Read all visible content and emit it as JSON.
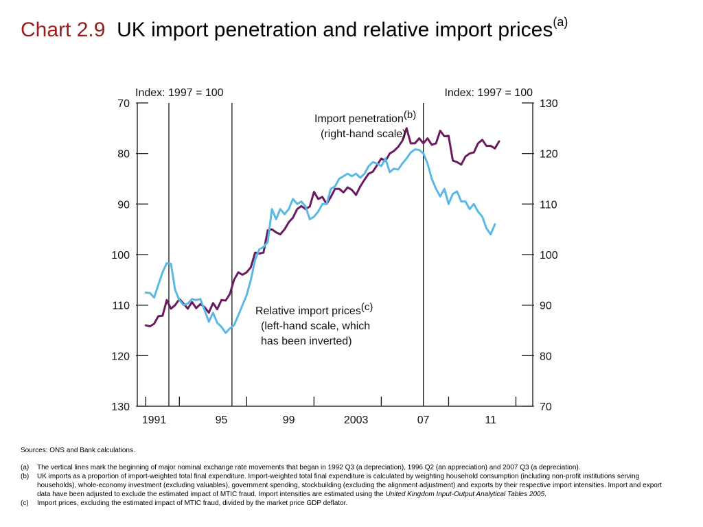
{
  "header": {
    "chart_number": "Chart 2.9",
    "title": "UK import penetration and relative import prices",
    "title_footnote": "(a)"
  },
  "chart_data": {
    "type": "line",
    "left_axis": {
      "label": "Index: 1997 = 100",
      "ylim": [
        70,
        130
      ],
      "inverted": true,
      "ticks": [
        "70",
        "80",
        "90",
        "100",
        "110",
        "120",
        "130"
      ]
    },
    "right_axis": {
      "label": "Index: 1997 = 100",
      "ylim": [
        70,
        130
      ],
      "inverted": false,
      "ticks": [
        "130",
        "120",
        "110",
        "100",
        "90",
        "80",
        "70"
      ]
    },
    "x_axis": {
      "xlim": [
        1989.5,
        2013.0
      ],
      "ticks": [
        1990,
        1992,
        1996,
        2000,
        2004,
        2008,
        2012
      ],
      "tick_labels": [
        {
          "x": 1990.5,
          "label": "1991"
        },
        {
          "x": 1994.5,
          "label": "95"
        },
        {
          "x": 1998.5,
          "label": "99"
        },
        {
          "x": 2002.5,
          "label": "2003"
        },
        {
          "x": 2006.5,
          "label": "07"
        },
        {
          "x": 2010.5,
          "label": "11"
        }
      ]
    },
    "vertical_lines": [
      1991.375,
      1995.125,
      2006.5
    ],
    "grid": false,
    "series": [
      {
        "key": "import_penetration",
        "axis": "right",
        "color": "#6a1a5e",
        "label_lines": [
          "Import penetration",
          "(right-hand scale)"
        ],
        "label_footnote": "(b)",
        "points": [
          [
            1990.0,
            86.0
          ],
          [
            1990.25,
            85.8
          ],
          [
            1990.5,
            86.3
          ],
          [
            1990.75,
            87.8
          ],
          [
            1991.0,
            87.9
          ],
          [
            1991.25,
            91.0
          ],
          [
            1991.5,
            89.3
          ],
          [
            1991.75,
            90.0
          ],
          [
            1992.0,
            91.2
          ],
          [
            1992.25,
            90.3
          ],
          [
            1992.5,
            89.3
          ],
          [
            1992.75,
            90.6
          ],
          [
            1993.0,
            89.4
          ],
          [
            1993.25,
            90.2
          ],
          [
            1993.5,
            89.6
          ],
          [
            1993.75,
            88.5
          ],
          [
            1994.0,
            90.4
          ],
          [
            1994.25,
            89.2
          ],
          [
            1994.5,
            91.0
          ],
          [
            1994.75,
            90.9
          ],
          [
            1995.0,
            92.2
          ],
          [
            1995.25,
            95.0
          ],
          [
            1995.5,
            96.5
          ],
          [
            1995.75,
            96.0
          ],
          [
            1996.0,
            96.5
          ],
          [
            1996.25,
            97.5
          ],
          [
            1996.5,
            100.4
          ],
          [
            1996.75,
            100.2
          ],
          [
            1997.0,
            100.4
          ],
          [
            1997.25,
            104.8
          ],
          [
            1997.5,
            105.0
          ],
          [
            1997.75,
            104.4
          ],
          [
            1998.0,
            104.0
          ],
          [
            1998.25,
            105.0
          ],
          [
            1998.5,
            106.4
          ],
          [
            1998.75,
            107.3
          ],
          [
            1999.0,
            109.0
          ],
          [
            1999.25,
            109.6
          ],
          [
            1999.5,
            109.0
          ],
          [
            1999.75,
            109.5
          ],
          [
            2000.0,
            112.4
          ],
          [
            2000.25,
            111.0
          ],
          [
            2000.5,
            111.4
          ],
          [
            2000.75,
            110.0
          ],
          [
            2001.0,
            111.4
          ],
          [
            2001.25,
            113.0
          ],
          [
            2001.5,
            113.0
          ],
          [
            2001.75,
            112.3
          ],
          [
            2002.0,
            113.3
          ],
          [
            2002.25,
            112.8
          ],
          [
            2002.5,
            111.8
          ],
          [
            2002.75,
            113.5
          ],
          [
            2003.0,
            114.8
          ],
          [
            2003.25,
            116.0
          ],
          [
            2003.5,
            116.4
          ],
          [
            2003.75,
            117.7
          ],
          [
            2004.0,
            119.0
          ],
          [
            2004.25,
            118.5
          ],
          [
            2004.5,
            120.0
          ],
          [
            2004.75,
            120.5
          ],
          [
            2005.0,
            121.3
          ],
          [
            2005.25,
            122.5
          ],
          [
            2005.5,
            125.0
          ],
          [
            2005.75,
            122.0
          ],
          [
            2006.0,
            122.0
          ],
          [
            2006.25,
            123.0
          ],
          [
            2006.5,
            122.0
          ],
          [
            2006.75,
            123.0
          ],
          [
            2007.0,
            121.7
          ],
          [
            2007.25,
            122.0
          ],
          [
            2007.5,
            124.5
          ],
          [
            2007.75,
            123.4
          ],
          [
            2008.0,
            123.5
          ],
          [
            2008.25,
            118.6
          ],
          [
            2008.5,
            118.3
          ],
          [
            2008.75,
            117.8
          ],
          [
            2009.0,
            119.4
          ],
          [
            2009.25,
            120.0
          ],
          [
            2009.5,
            120.2
          ],
          [
            2009.75,
            122.0
          ],
          [
            2010.0,
            122.7
          ],
          [
            2010.25,
            121.5
          ],
          [
            2010.5,
            121.5
          ],
          [
            2010.75,
            121.0
          ],
          [
            2011.0,
            122.4
          ]
        ]
      },
      {
        "key": "relative_import_prices",
        "axis": "left",
        "color": "#5bb8e4",
        "label_lines": [
          "Relative import prices",
          "(left-hand scale, which",
          "has been inverted)"
        ],
        "label_footnote": "(c)",
        "points": [
          [
            1990.0,
            107.5
          ],
          [
            1990.25,
            107.6
          ],
          [
            1990.5,
            108.5
          ],
          [
            1990.75,
            106.0
          ],
          [
            1991.0,
            103.5
          ],
          [
            1991.25,
            101.7
          ],
          [
            1991.5,
            101.8
          ],
          [
            1991.75,
            107.0
          ],
          [
            1992.0,
            109.0
          ],
          [
            1992.25,
            110.0
          ],
          [
            1992.5,
            109.7
          ],
          [
            1992.75,
            108.8
          ],
          [
            1993.0,
            109.0
          ],
          [
            1993.25,
            108.8
          ],
          [
            1993.5,
            111.0
          ],
          [
            1993.75,
            113.3
          ],
          [
            1994.0,
            111.5
          ],
          [
            1994.25,
            113.5
          ],
          [
            1994.5,
            114.3
          ],
          [
            1994.75,
            115.5
          ],
          [
            1995.0,
            114.6
          ],
          [
            1995.25,
            114.0
          ],
          [
            1995.5,
            112.0
          ],
          [
            1995.75,
            110.0
          ],
          [
            1996.0,
            108.0
          ],
          [
            1996.25,
            105.0
          ],
          [
            1996.5,
            101.0
          ],
          [
            1996.75,
            99.0
          ],
          [
            1997.0,
            98.5
          ],
          [
            1997.25,
            97.5
          ],
          [
            1997.5,
            91.0
          ],
          [
            1997.75,
            93.0
          ],
          [
            1998.0,
            91.0
          ],
          [
            1998.25,
            92.0
          ],
          [
            1998.5,
            91.0
          ],
          [
            1998.75,
            89.0
          ],
          [
            1999.0,
            90.0
          ],
          [
            1999.25,
            89.5
          ],
          [
            1999.5,
            90.5
          ],
          [
            1999.75,
            93.0
          ],
          [
            2000.0,
            92.5
          ],
          [
            2000.25,
            91.5
          ],
          [
            2000.5,
            90.0
          ],
          [
            2000.75,
            90.0
          ],
          [
            2001.0,
            87.0
          ],
          [
            2001.25,
            86.5
          ],
          [
            2001.5,
            85.0
          ],
          [
            2001.75,
            84.5
          ],
          [
            2002.0,
            84.0
          ],
          [
            2002.25,
            84.5
          ],
          [
            2002.5,
            84.0
          ],
          [
            2002.75,
            84.8
          ],
          [
            2003.0,
            84.0
          ],
          [
            2003.25,
            82.5
          ],
          [
            2003.5,
            81.7
          ],
          [
            2003.75,
            82.0
          ],
          [
            2004.0,
            82.5
          ],
          [
            2004.25,
            81.0
          ],
          [
            2004.5,
            83.7
          ],
          [
            2004.75,
            83.0
          ],
          [
            2005.0,
            83.2
          ],
          [
            2005.25,
            82.0
          ],
          [
            2005.5,
            81.0
          ],
          [
            2005.75,
            79.8
          ],
          [
            2006.0,
            79.2
          ],
          [
            2006.25,
            79.3
          ],
          [
            2006.5,
            80.0
          ],
          [
            2006.75,
            82.0
          ],
          [
            2007.0,
            85.0
          ],
          [
            2007.25,
            87.0
          ],
          [
            2007.5,
            88.5
          ],
          [
            2007.75,
            87.0
          ],
          [
            2008.0,
            90.0
          ],
          [
            2008.25,
            88.0
          ],
          [
            2008.5,
            87.5
          ],
          [
            2008.75,
            89.5
          ],
          [
            2009.0,
            89.5
          ],
          [
            2009.25,
            91.0
          ],
          [
            2009.5,
            90.0
          ],
          [
            2009.75,
            91.5
          ],
          [
            2010.0,
            92.5
          ],
          [
            2010.25,
            94.8
          ],
          [
            2010.5,
            96.0
          ],
          [
            2010.75,
            94.0
          ]
        ]
      }
    ]
  },
  "notes": {
    "sources": "Sources:  ONS and Bank calculations.",
    "items": [
      {
        "label": "(a)",
        "text": "The vertical lines mark the beginning of major nominal exchange rate movements that began in 1992 Q3 (a depreciation), 1996 Q2 (an appreciation) and 2007 Q3 (a depreciation)."
      },
      {
        "label": "(b)",
        "text": "UK imports as a proportion of import-weighted total final expenditure.  Import-weighted total final expenditure is calculated by weighting household consumption (including non-profit institutions serving households), whole-economy investment (excluding valuables), government spending, stockbuilding (excluding the alignment adjustment) and exports by their respective import intensities.  Import and export data have been adjusted to exclude the estimated impact of MTIC fraud.  Import intensities are estimated using the ",
        "italic": "United Kingdom Input-Output Analytical Tables 2005",
        "tail": "."
      },
      {
        "label": "(c)",
        "text": "Import prices, excluding the estimated impact of MTIC fraud, divided by the market price GDP deflator."
      }
    ]
  }
}
